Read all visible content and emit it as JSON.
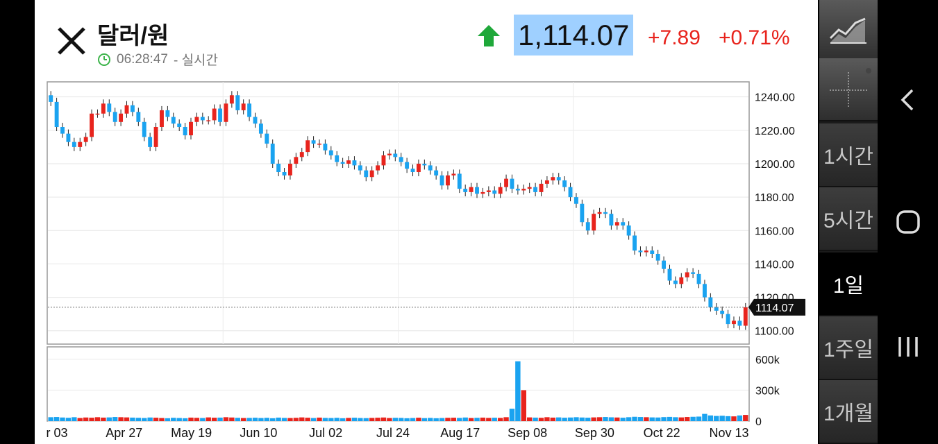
{
  "header": {
    "title": "달러/원",
    "time": "06:28:47",
    "time_mode": "- 실시간",
    "price": "1,114.07",
    "change": "+7.89",
    "change_pct": "+0.71%",
    "price_tag": "1114.07"
  },
  "colors": {
    "up": "#e8241d",
    "down": "#1aa3f0",
    "arrow": "#1fa83a"
  },
  "side_menu": {
    "items": [
      {
        "label": "1시간"
      },
      {
        "label": "5시간"
      },
      {
        "label": "1일",
        "active": true
      },
      {
        "label": "1주일"
      },
      {
        "label": "1개월"
      }
    ]
  },
  "chart_data": {
    "type": "candlestick",
    "price_axis": {
      "ylim": [
        1092,
        1249
      ],
      "ticks": [
        "1240.00",
        "1220.00",
        "1200.00",
        "1180.00",
        "1160.00",
        "1140.00",
        "1120.00",
        "1100.00"
      ]
    },
    "volume_axis": {
      "ylim": [
        0,
        720
      ],
      "ticks": [
        "600k",
        "300k",
        "0"
      ]
    },
    "x_tick_labels": [
      "r 03",
      "Apr 27",
      "May 19",
      "Jun 10",
      "Jul 02",
      "Jul 24",
      "Aug 17",
      "Sep 08",
      "Sep 30",
      "Oct 22",
      "Nov 13"
    ],
    "last_price": 1114.07,
    "series": [
      {
        "name": "close",
        "values": [
          1237,
          1222,
          1218,
          1213,
          1210,
          1213,
          1216,
          1230,
          1230,
          1236,
          1231,
          1225,
          1230,
          1235,
          1231,
          1225,
          1216,
          1210,
          1222,
          1232,
          1228,
          1224,
          1222,
          1217,
          1225,
          1228,
          1226,
          1226,
          1233,
          1225,
          1236,
          1241,
          1232,
          1236,
          1228,
          1224,
          1218,
          1212,
          1200,
          1195,
          1193,
          1200,
          1204,
          1207,
          1214,
          1212,
          1212,
          1208,
          1205,
          1201,
          1200,
          1202,
          1199,
          1196,
          1192,
          1196,
          1199,
          1205,
          1206,
          1204,
          1201,
          1197,
          1195,
          1200,
          1199,
          1196,
          1193,
          1187,
          1193,
          1194,
          1185,
          1183,
          1186,
          1182,
          1183,
          1184,
          1182,
          1186,
          1191,
          1185,
          1184,
          1185,
          1186,
          1183,
          1188,
          1190,
          1192,
          1190,
          1186,
          1180,
          1176,
          1165,
          1160,
          1170,
          1171,
          1170,
          1163,
          1165,
          1163,
          1157,
          1148,
          1147,
          1148,
          1146,
          1142,
          1137,
          1130,
          1128,
          1132,
          1135,
          1134,
          1128,
          1120,
          1114,
          1112,
          1110,
          1104,
          1106,
          1103,
          1114.07
        ]
      },
      {
        "name": "volume_k",
        "values": [
          38,
          40,
          35,
          32,
          38,
          30,
          35,
          33,
          38,
          34,
          36,
          40,
          38,
          36,
          34,
          32,
          30,
          35,
          33,
          30,
          28,
          32,
          30,
          28,
          34,
          32,
          30,
          36,
          33,
          34,
          38,
          35,
          32,
          30,
          31,
          33,
          30,
          32,
          28,
          34,
          31,
          30,
          32,
          36,
          33,
          30,
          34,
          31,
          30,
          32,
          28,
          31,
          33,
          30,
          29,
          31,
          33,
          35,
          30,
          32,
          31,
          28,
          30,
          33,
          29,
          31,
          28,
          30,
          32,
          33,
          31,
          35,
          30,
          32,
          34,
          31,
          33,
          31,
          38,
          120,
          580,
          300,
          36,
          34,
          32,
          38,
          34,
          36,
          33,
          35,
          38,
          35,
          33,
          36,
          38,
          40,
          37,
          35,
          33,
          38,
          42,
          40,
          38,
          36,
          35,
          39,
          41,
          38,
          36,
          40,
          42,
          44,
          70,
          55,
          50,
          52,
          48,
          46,
          55,
          60
        ]
      }
    ]
  }
}
